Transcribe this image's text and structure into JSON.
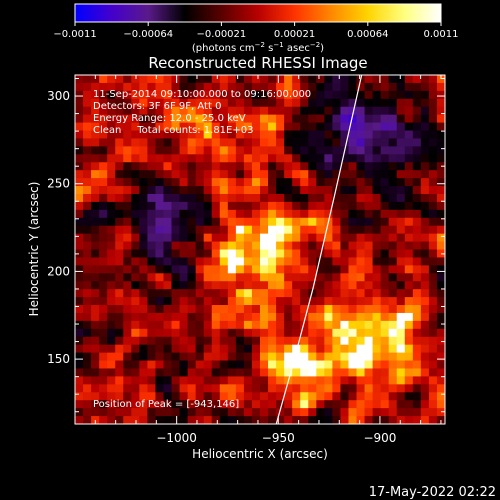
{
  "chart_data": {
    "type": "heatmap",
    "title": "Reconstructed RHESSI Image",
    "xlabel": "Heliocentric X (arcsec)",
    "ylabel": "Heliocentric Y (arcsec)",
    "xlim": [
      -1050,
      -868
    ],
    "ylim": [
      113,
      312
    ],
    "x_ticks": [
      {
        "value": -1000,
        "label": "−1000"
      },
      {
        "value": -950,
        "label": "−950"
      },
      {
        "value": -900,
        "label": "−900"
      }
    ],
    "y_ticks": [
      {
        "value": 150,
        "label": "150"
      },
      {
        "value": 200,
        "label": "200"
      },
      {
        "value": 250,
        "label": "250"
      },
      {
        "value": 300,
        "label": "300"
      }
    ],
    "colorbar": {
      "min": -0.0011,
      "max": 0.0011,
      "tick_labels": [
        "−0.0011",
        "−0.00064",
        "−0.00021",
        "0.00021",
        "0.00064",
        "0.0011"
      ],
      "unit_parts": [
        "(photons cm",
        "−2",
        " s",
        "−1",
        " asec",
        "−2",
        ")"
      ],
      "colors": [
        "#0000ff",
        "#4400cc",
        "#5a1a8a",
        "#000000",
        "#5a0000",
        "#b80000",
        "#ff3300",
        "#ff8800",
        "#ffd400",
        "#ffff80",
        "#ffffff"
      ]
    },
    "annotations": [
      "11-Sep-2014 09:10:00.000 to 09:16:00.000",
      "Detectors: 3F 6F 9F, Att 0",
      "Energy Range: 12.0 - 25.0 keV",
      "Clean     Total counts: 1.81E+03"
    ],
    "peak_label": "Position of Peak = [-943,146]",
    "limb": [
      [
        -951,
        113
      ],
      [
        -943,
        146
      ],
      [
        -933,
        190
      ],
      [
        -922,
        245
      ],
      [
        -909,
        312
      ]
    ],
    "sources": [
      {
        "x": -943,
        "y": 146,
        "peak": 1.0,
        "sigma": 9
      },
      {
        "x": -905,
        "y": 160,
        "peak": 0.85,
        "sigma": 20
      },
      {
        "x": -960,
        "y": 215,
        "peak": 0.75,
        "sigma": 20
      },
      {
        "x": -1030,
        "y": 215,
        "peak": 0.45,
        "sigma": 12
      },
      {
        "x": -985,
        "y": 280,
        "peak": 0.4,
        "sigma": 20
      }
    ],
    "dark_regions": [
      {
        "x": -1005,
        "y": 225,
        "sigma": 22
      },
      {
        "x": -905,
        "y": 280,
        "sigma": 25
      }
    ]
  },
  "footer": {
    "timestamp": "17-May-2022 02:22"
  }
}
